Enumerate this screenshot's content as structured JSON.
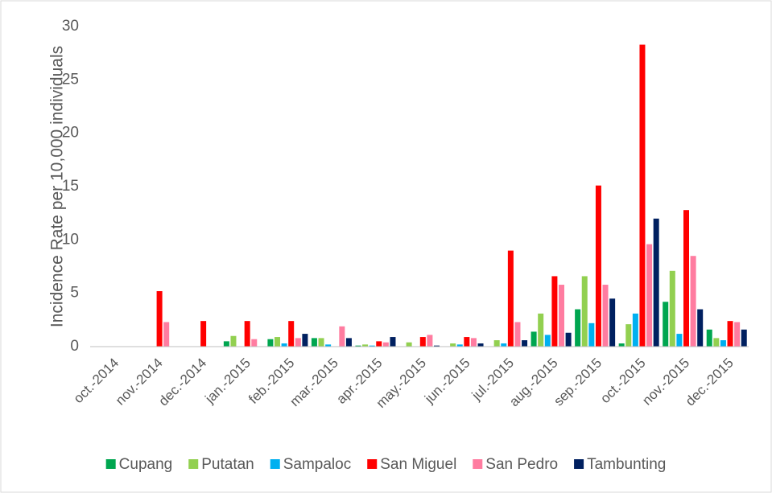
{
  "chart_data": {
    "type": "bar",
    "y_label": "Incidence Rate per 10,000 individuals",
    "categories": [
      "oct.-2014",
      "nov.-2014",
      "dec.-2014",
      "jan.-2015",
      "feb.-2015",
      "mar.-2015",
      "apr.-2015",
      "may.-2015",
      "jun.-2015",
      "jul.-2015",
      "aug.-2015",
      "sep.-2015",
      "oct.-2015",
      "nov.-2015",
      "dec.-2015"
    ],
    "series": [
      {
        "name": "Cupang",
        "color": "#00a650",
        "values": [
          0,
          0,
          0,
          0.5,
          0.7,
          0.8,
          0.1,
          0,
          0,
          0,
          1.4,
          3.5,
          0.3,
          4.2,
          1.6
        ]
      },
      {
        "name": "Putatan",
        "color": "#92d050",
        "values": [
          0,
          0,
          0,
          1.0,
          0.9,
          0.8,
          0.2,
          0.4,
          0.3,
          0.6,
          3.1,
          6.6,
          2.1,
          7.1,
          0.8
        ]
      },
      {
        "name": "Sampaloc",
        "color": "#00b0f0",
        "values": [
          0,
          0,
          0,
          0,
          0.3,
          0.2,
          0.1,
          0,
          0.2,
          0.3,
          1.1,
          2.2,
          3.1,
          1.2,
          0.6
        ]
      },
      {
        "name": "San Miguel",
        "color": "#ff0000",
        "values": [
          0,
          5.2,
          2.4,
          2.4,
          2.4,
          0,
          0.5,
          0.9,
          0.9,
          9.0,
          6.6,
          15.1,
          28.3,
          12.8,
          2.4
        ]
      },
      {
        "name": "San Pedro",
        "color": "#ff7ca0",
        "values": [
          0,
          2.3,
          0,
          0.7,
          0.8,
          1.9,
          0.4,
          1.1,
          0.8,
          2.3,
          5.8,
          5.8,
          9.6,
          8.5,
          2.3
        ]
      },
      {
        "name": "Tambunting",
        "color": "#002060",
        "values": [
          0,
          0,
          0,
          0,
          1.2,
          0.8,
          0.9,
          0.1,
          0.3,
          0.6,
          1.3,
          4.5,
          12.0,
          3.5,
          1.6
        ]
      }
    ],
    "ylim": [
      0,
      30
    ],
    "yticks": [
      0,
      5,
      10,
      15,
      20,
      25,
      30
    ],
    "grid": false,
    "legend": "bottom"
  }
}
